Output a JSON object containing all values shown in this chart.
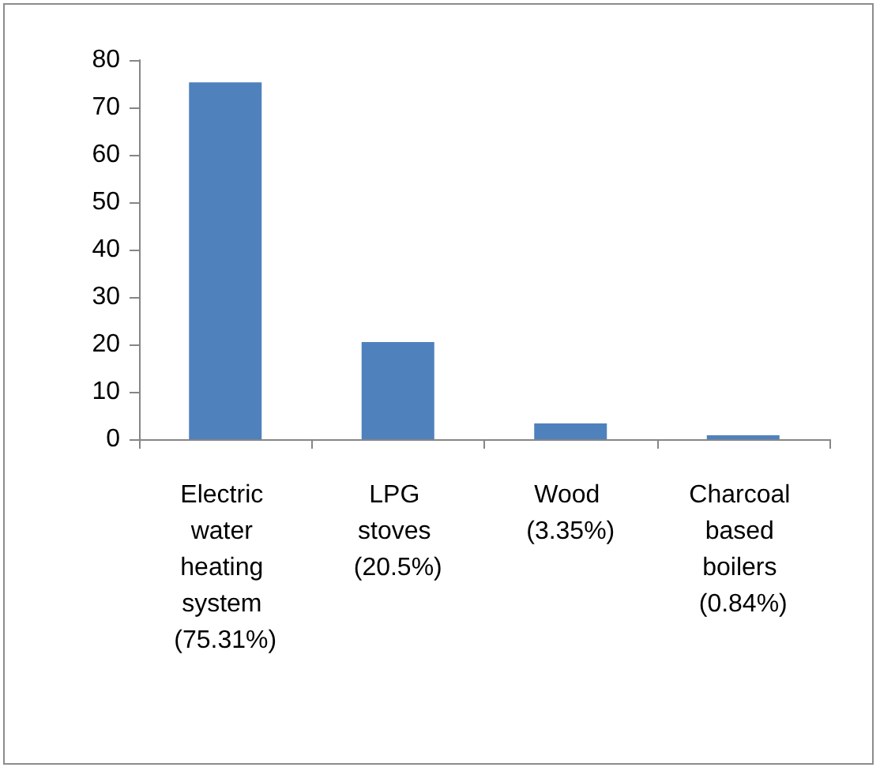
{
  "chart_data": {
    "type": "bar",
    "categories": [
      "Electric water heating system (75.31%)",
      "LPG stoves (20.5%)",
      "Wood (3.35%)",
      "Charcoal based boilers (0.84%)"
    ],
    "values": [
      75.31,
      20.5,
      3.35,
      0.84
    ],
    "color": "#4f81bd",
    "ylim": [
      0,
      80
    ],
    "yticks": [
      0,
      10,
      20,
      30,
      40,
      50,
      60,
      70,
      80
    ],
    "grid": false
  }
}
